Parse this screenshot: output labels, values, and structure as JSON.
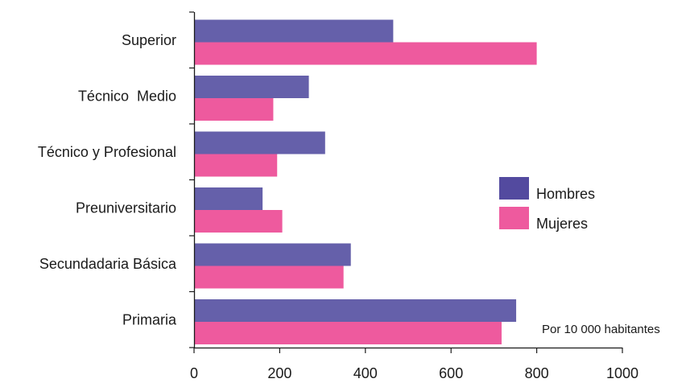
{
  "chart_data": {
    "type": "bar",
    "orientation": "horizontal",
    "categories": [
      "Superior",
      "Técnico  Medio",
      "Técnico y Profesional",
      "Preuniversitario",
      "Secundadaria Básica",
      "Primaria"
    ],
    "series": [
      {
        "name": "Hombres",
        "color": "#6560aa",
        "values": [
          465,
          268,
          306,
          160,
          366,
          752
        ]
      },
      {
        "name": "Mujeres",
        "color": "#ee5a9e",
        "values": [
          800,
          185,
          194,
          206,
          349,
          718
        ]
      }
    ],
    "xticks": [
      "0",
      "200",
      "400",
      "600",
      "800",
      "1000"
    ],
    "xlim": [
      0,
      1000
    ],
    "grid": false,
    "legend_position": "right",
    "legend_colors": [
      "#534a9f",
      "#ee5a9e"
    ],
    "annotation": "Por 10 000 habitantes"
  }
}
